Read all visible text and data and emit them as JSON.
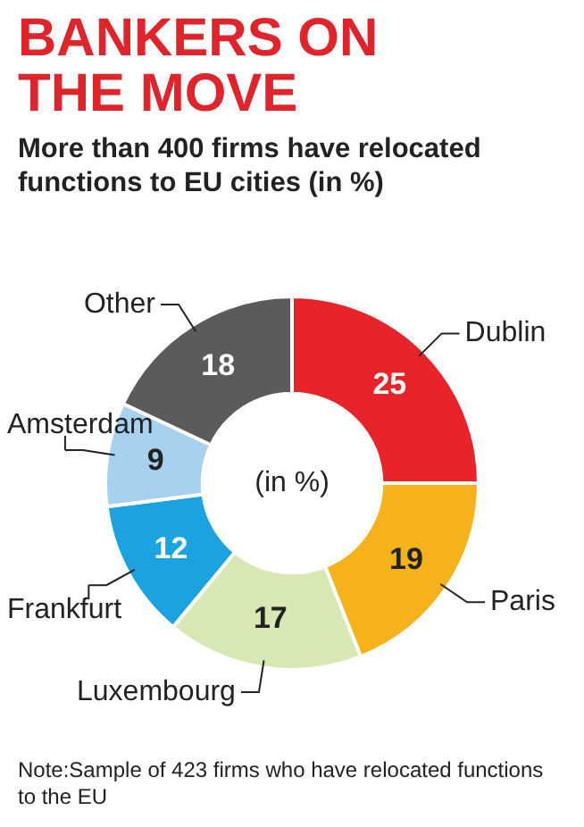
{
  "chart_data": {
    "type": "donut",
    "title": "BANKERS ON THE MOVE",
    "subtitle": "More than 400 firms have relocated functions to EU cities (in %)",
    "categories": [
      "Dublin",
      "Paris",
      "Luxembourg",
      "Frankfurt",
      "Amsterdam",
      "Other"
    ],
    "values": [
      25,
      19,
      17,
      12,
      9,
      18
    ],
    "colors": [
      "#e8242a",
      "#f6b21b",
      "#d7e8b4",
      "#1aa3e0",
      "#a8d0ef",
      "#5b5b5b"
    ],
    "data_labels": true,
    "legend": false,
    "annotations": [
      "(in %)",
      "Note:Sample of 423 firms who have relocated functions to the EU"
    ]
  }
}
